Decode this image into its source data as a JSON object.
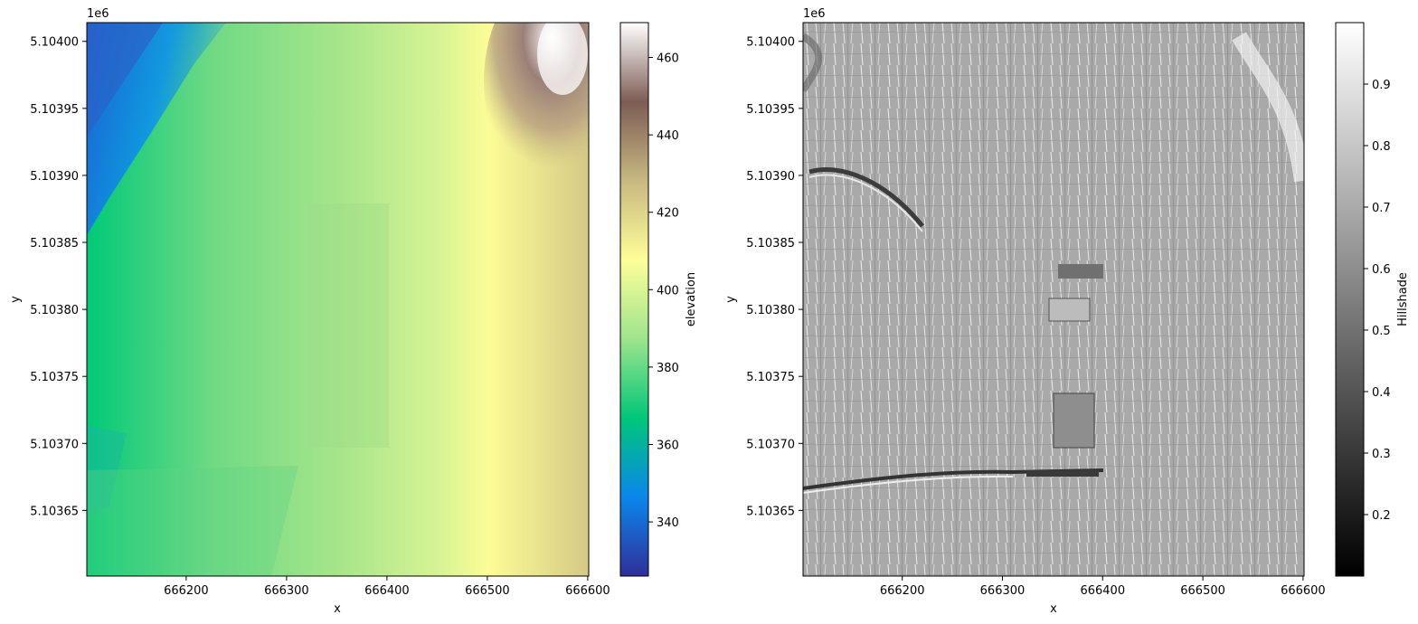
{
  "chart_data": [
    {
      "type": "heatmap",
      "xlabel": "x",
      "ylabel": "y",
      "offset_text": "1e6",
      "x_ticks": [
        666200,
        666300,
        666400,
        666500,
        666600
      ],
      "y_ticks": [
        "5.10365",
        "5.10370",
        "5.10375",
        "5.10380",
        "5.10385",
        "5.10390",
        "5.10395",
        "5.10400"
      ],
      "xlim": [
        666101,
        666601
      ],
      "ylim": [
        5103601,
        5104014
      ],
      "colorbar": {
        "label": "elevation",
        "colormap": "terrain",
        "range": [
          326,
          469
        ],
        "ticks": [
          340,
          360,
          380,
          400,
          420,
          440,
          460
        ]
      },
      "colormap_stops": [
        "#2f2f9a",
        "#0a87ec",
        "#00c778",
        "#9de58c",
        "#fefe98",
        "#c8b880",
        "#7d5c54",
        "#ffffff"
      ]
    },
    {
      "type": "heatmap",
      "xlabel": "x",
      "ylabel": "y",
      "offset_text": "1e6",
      "x_ticks": [
        666200,
        666300,
        666400,
        666500,
        666600
      ],
      "y_ticks": [
        "5.10365",
        "5.10370",
        "5.10375",
        "5.10380",
        "5.10385",
        "5.10390",
        "5.10395",
        "5.10400"
      ],
      "xlim": [
        666101,
        666601
      ],
      "ylim": [
        5103601,
        5104014
      ],
      "colorbar": {
        "label": "Hillshade",
        "colormap": "gray",
        "range": [
          0.1,
          1.0
        ],
        "ticks": [
          "0.2",
          "0.3",
          "0.4",
          "0.5",
          "0.6",
          "0.7",
          "0.8",
          "0.9"
        ]
      },
      "colormap_stops": [
        "#000000",
        "#ffffff"
      ]
    }
  ]
}
